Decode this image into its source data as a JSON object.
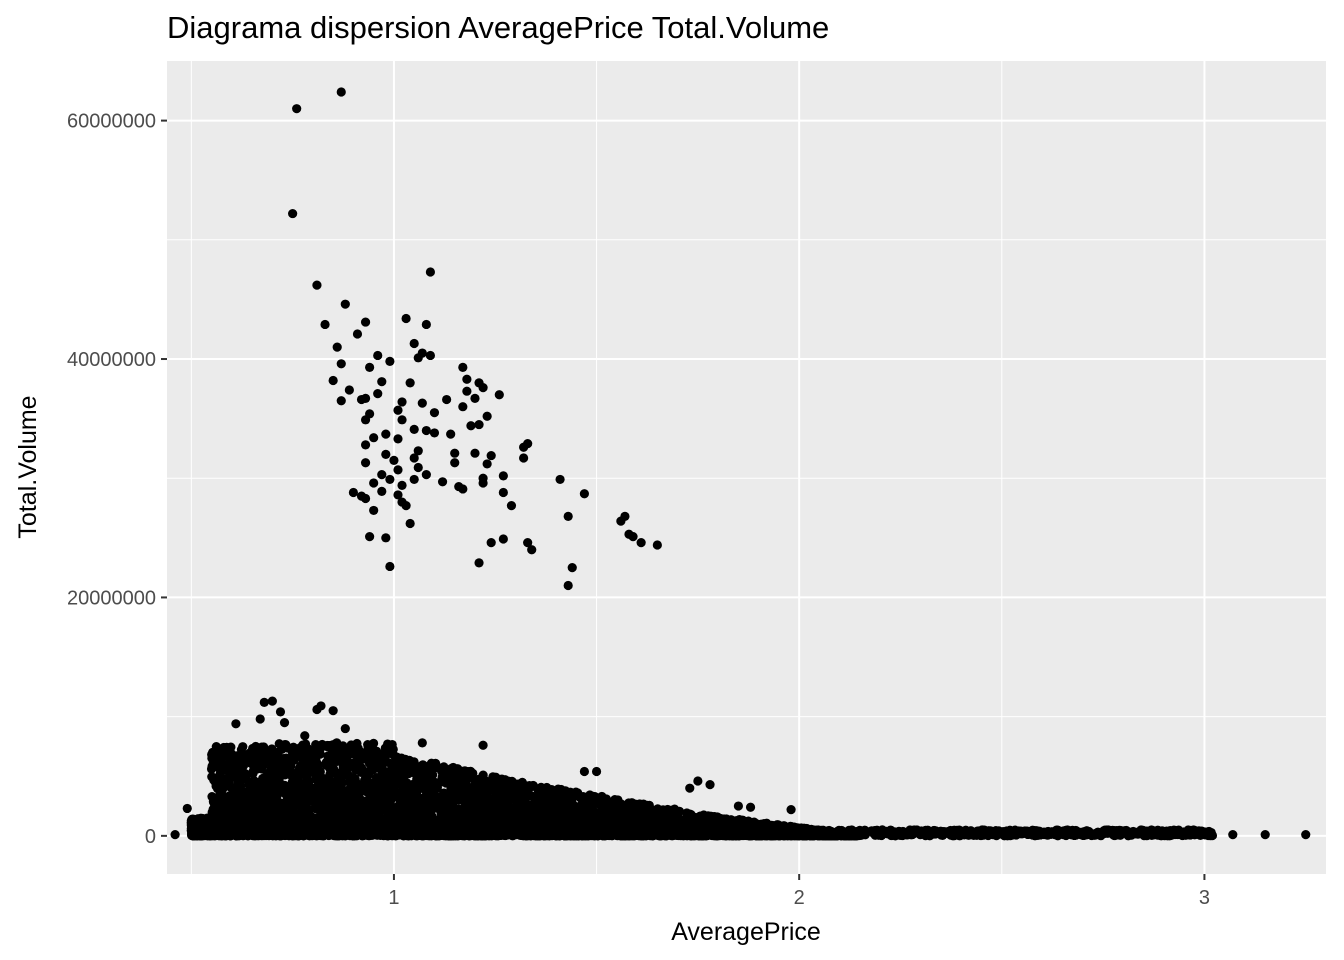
{
  "chart_data": {
    "type": "scatter",
    "title": "Diagrama dispersion AveragePrice Total.Volume",
    "xlabel": "AveragePrice",
    "ylabel": "Total.Volume",
    "xlim": [
      0.44,
      3.3
    ],
    "ylim": [
      -3200000,
      65000000
    ],
    "x_ticks": [
      1,
      2,
      3
    ],
    "x_tick_labels": [
      "1",
      "2",
      "3"
    ],
    "y_ticks": [
      0,
      20000000,
      40000000,
      60000000
    ],
    "y_tick_labels": [
      "0",
      "20000000",
      "40000000",
      "60000000"
    ],
    "grid": true,
    "legend": "none",
    "panel_color": "#ebebeb",
    "grid_color": "#ffffff",
    "point_color": "#000000",
    "series": [
      {
        "points": [
          [
            0.87,
            62400000
          ],
          [
            0.76,
            61000000
          ],
          [
            0.75,
            52200000
          ],
          [
            1.09,
            47300000
          ],
          [
            0.81,
            46200000
          ],
          [
            0.88,
            44600000
          ],
          [
            0.83,
            42900000
          ],
          [
            1.03,
            43400000
          ],
          [
            1.08,
            42900000
          ],
          [
            0.93,
            43100000
          ],
          [
            0.91,
            42100000
          ],
          [
            1.05,
            41300000
          ],
          [
            0.86,
            41000000
          ],
          [
            1.07,
            40500000
          ],
          [
            1.09,
            40300000
          ],
          [
            0.96,
            40300000
          ],
          [
            0.99,
            39800000
          ],
          [
            1.06,
            40100000
          ],
          [
            0.87,
            39600000
          ],
          [
            0.94,
            39300000
          ],
          [
            1.17,
            39300000
          ],
          [
            1.21,
            38000000
          ],
          [
            1.18,
            38300000
          ],
          [
            1.04,
            38000000
          ],
          [
            0.85,
            38200000
          ],
          [
            0.97,
            38100000
          ],
          [
            1.22,
            37600000
          ],
          [
            0.89,
            37400000
          ],
          [
            0.96,
            37100000
          ],
          [
            1.18,
            37300000
          ],
          [
            1.26,
            37000000
          ],
          [
            1.2,
            36700000
          ],
          [
            0.93,
            36700000
          ],
          [
            0.87,
            36500000
          ],
          [
            1.02,
            36400000
          ],
          [
            1.13,
            36600000
          ],
          [
            1.07,
            36300000
          ],
          [
            0.92,
            36600000
          ],
          [
            1.17,
            36000000
          ],
          [
            1.1,
            35500000
          ],
          [
            0.94,
            35400000
          ],
          [
            1.23,
            35200000
          ],
          [
            1.01,
            35700000
          ],
          [
            0.93,
            34900000
          ],
          [
            1.02,
            34900000
          ],
          [
            1.21,
            34500000
          ],
          [
            1.05,
            34100000
          ],
          [
            1.1,
            33800000
          ],
          [
            1.14,
            33700000
          ],
          [
            0.98,
            33700000
          ],
          [
            1.08,
            34000000
          ],
          [
            1.19,
            34400000
          ],
          [
            0.95,
            33400000
          ],
          [
            1.01,
            33300000
          ],
          [
            0.93,
            32800000
          ],
          [
            1.06,
            32300000
          ],
          [
            1.32,
            32600000
          ],
          [
            1.33,
            32900000
          ],
          [
            1.2,
            32100000
          ],
          [
            1.15,
            32100000
          ],
          [
            0.98,
            32000000
          ],
          [
            1.24,
            31900000
          ],
          [
            1.05,
            31700000
          ],
          [
            1.0,
            31500000
          ],
          [
            0.93,
            31300000
          ],
          [
            1.15,
            31300000
          ],
          [
            1.32,
            31700000
          ],
          [
            1.23,
            31200000
          ],
          [
            1.06,
            30900000
          ],
          [
            1.01,
            30700000
          ],
          [
            0.97,
            30300000
          ],
          [
            1.08,
            30300000
          ],
          [
            1.27,
            30200000
          ],
          [
            1.22,
            30000000
          ],
          [
            1.05,
            29900000
          ],
          [
            0.99,
            29900000
          ],
          [
            0.95,
            29600000
          ],
          [
            1.12,
            29700000
          ],
          [
            1.22,
            29600000
          ],
          [
            1.02,
            29400000
          ],
          [
            1.16,
            29300000
          ],
          [
            1.17,
            29100000
          ],
          [
            0.9,
            28800000
          ],
          [
            0.97,
            28900000
          ],
          [
            1.27,
            28800000
          ],
          [
            1.01,
            28600000
          ],
          [
            1.41,
            29900000
          ],
          [
            0.92,
            28500000
          ],
          [
            0.93,
            28300000
          ],
          [
            1.02,
            28000000
          ],
          [
            1.03,
            27700000
          ],
          [
            0.95,
            27300000
          ],
          [
            1.29,
            27700000
          ],
          [
            1.47,
            28700000
          ],
          [
            1.43,
            26800000
          ],
          [
            1.56,
            26400000
          ],
          [
            1.57,
            26800000
          ],
          [
            1.04,
            26200000
          ],
          [
            1.58,
            25300000
          ],
          [
            1.59,
            25100000
          ],
          [
            1.27,
            24900000
          ],
          [
            1.24,
            24600000
          ],
          [
            1.33,
            24600000
          ],
          [
            1.34,
            24000000
          ],
          [
            1.61,
            24600000
          ],
          [
            1.65,
            24400000
          ],
          [
            0.94,
            25100000
          ],
          [
            0.98,
            25000000
          ],
          [
            1.21,
            22900000
          ],
          [
            1.44,
            22500000
          ],
          [
            0.99,
            22600000
          ],
          [
            1.43,
            21000000
          ],
          [
            0.7,
            11300000
          ],
          [
            0.68,
            11200000
          ],
          [
            0.82,
            10900000
          ],
          [
            0.85,
            10500000
          ],
          [
            0.72,
            10400000
          ],
          [
            0.61,
            9400000
          ],
          [
            0.67,
            9800000
          ],
          [
            0.73,
            9500000
          ],
          [
            0.88,
            9000000
          ],
          [
            0.63,
            6800000
          ],
          [
            0.66,
            6800000
          ],
          [
            0.55,
            5600000
          ],
          [
            0.6,
            5000000
          ],
          [
            0.62,
            4200000
          ],
          [
            0.66,
            3900000
          ],
          [
            0.68,
            3200000
          ],
          [
            0.49,
            2300000
          ],
          [
            0.57,
            2300000
          ],
          [
            0.81,
            10600000
          ],
          [
            0.78,
            8400000
          ],
          [
            1.22,
            7600000
          ],
          [
            1.07,
            7800000
          ],
          [
            1.47,
            5400000
          ],
          [
            1.5,
            5400000
          ],
          [
            1.75,
            4600000
          ],
          [
            1.73,
            4000000
          ],
          [
            1.78,
            4300000
          ],
          [
            1.85,
            2500000
          ],
          [
            1.88,
            2400000
          ],
          [
            1.98,
            2200000
          ]
        ]
      }
    ]
  }
}
